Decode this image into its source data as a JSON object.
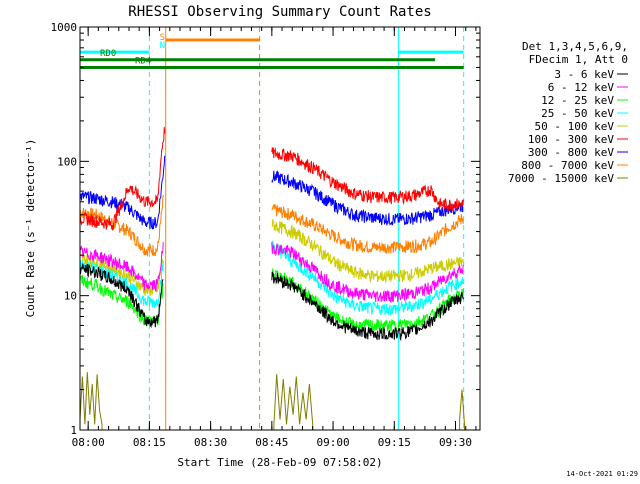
{
  "chart_data": {
    "type": "line",
    "title": "RHESSI Observing Summary Count Rates",
    "xlabel": "Start Time (28-Feb-09 07:58:02)",
    "ylabel": "Count Rate (s⁻¹ detector⁻¹)",
    "yscale": "log",
    "ylim": [
      1,
      1000
    ],
    "xlim_minutes": [
      0,
      98
    ],
    "x_ticks": [
      {
        "t": 2,
        "label": "08:00"
      },
      {
        "t": 17,
        "label": "08:15"
      },
      {
        "t": 32,
        "label": "08:30"
      },
      {
        "t": 47,
        "label": "08:45"
      },
      {
        "t": 62,
        "label": "09:00"
      },
      {
        "t": 77,
        "label": "09:15"
      },
      {
        "t": 92,
        "label": "09:30"
      }
    ],
    "y_ticks": [
      {
        "v": 1,
        "label": "1"
      },
      {
        "v": 10,
        "label": "10"
      },
      {
        "v": 100,
        "label": "100"
      },
      {
        "v": 1000,
        "label": "1000"
      }
    ],
    "legend": {
      "placement": "right",
      "header": [
        "Det 1,3,4,5,6,9,",
        "FDecim 1, Att 0"
      ],
      "entries": [
        {
          "label": "3 - 6 keV",
          "color": "#000000"
        },
        {
          "label": "6 - 12 keV",
          "color": "#ff00ff"
        },
        {
          "label": "12 - 25 keV",
          "color": "#00ff00"
        },
        {
          "label": "25 - 50 keV",
          "color": "#00ffff"
        },
        {
          "label": "50 - 100 keV",
          "color": "#cccc00"
        },
        {
          "label": "100 - 300 keV",
          "color": "#ff0000"
        },
        {
          "label": "300 - 800 keV",
          "color": "#0000ff"
        },
        {
          "label": "800 - 7000 keV",
          "color": "#ff7f00"
        },
        {
          "label": "7000 - 15000 keV",
          "color": "#7f7f00"
        }
      ]
    },
    "series": [
      {
        "name": "3 - 6 keV",
        "color": "#000000",
        "segments": [
          {
            "x": [
              0,
              4,
              8,
              12,
              16,
              19,
              20.5
            ],
            "y": [
              16,
              15,
              13,
              11,
              6.5,
              6.5,
              15
            ]
          },
          {
            "x": [
              47,
              52,
              57,
              62,
              67,
              72,
              77,
              82,
              86,
              90,
              94
            ],
            "y": [
              14,
              12,
              9,
              6.5,
              5.5,
              5.2,
              5.2,
              5.5,
              6.5,
              8.5,
              10
            ]
          }
        ]
      },
      {
        "name": "6 - 12 keV",
        "color": "#ff00ff",
        "segments": [
          {
            "x": [
              0,
              4,
              8,
              12,
              16,
              19,
              20.5
            ],
            "y": [
              21,
              20,
              18,
              16,
              12,
              12,
              24
            ]
          },
          {
            "x": [
              47,
              52,
              57,
              62,
              67,
              72,
              77,
              82,
              86,
              90,
              94
            ],
            "y": [
              23,
              21,
              16,
              12,
              10.5,
              10,
              10,
              10.5,
              11.5,
              14,
              16
            ]
          }
        ]
      },
      {
        "name": "12 - 25 keV",
        "color": "#00ff00",
        "segments": [
          {
            "x": [
              0,
              4,
              8,
              12,
              16,
              19,
              20.5
            ],
            "y": [
              13,
              12,
              10,
              9,
              6.5,
              6.5,
              12
            ]
          },
          {
            "x": [
              47,
              52,
              57,
              62,
              67,
              72,
              77,
              82,
              86,
              90,
              94
            ],
            "y": [
              15,
              12.5,
              9.5,
              7,
              6,
              6,
              6,
              6.3,
              7,
              9,
              10.5
            ]
          }
        ]
      },
      {
        "name": "25 - 50 keV",
        "color": "#00ffff",
        "segments": [
          {
            "x": [
              0,
              4,
              8,
              12,
              16,
              19,
              20.5
            ],
            "y": [
              17,
              16,
              14,
              12,
              9,
              9,
              18
            ]
          },
          {
            "x": [
              47,
              52,
              57,
              62,
              67,
              72,
              77,
              82,
              86,
              90,
              94
            ],
            "y": [
              24,
              18,
              14,
              10,
              8.5,
              8,
              8,
              8.5,
              9.5,
              11.5,
              13
            ]
          }
        ]
      },
      {
        "name": "50 - 100 keV",
        "color": "#cccc00",
        "segments": [
          {
            "x": [
              0,
              4,
              8,
              12,
              16,
              19,
              20.5
            ],
            "y": [
              19,
              18,
              16,
              14,
              11,
              11,
              20
            ]
          },
          {
            "x": [
              47,
              52,
              57,
              62,
              67,
              72,
              77,
              82,
              86,
              90,
              94
            ],
            "y": [
              34,
              30,
              24,
              18,
              15,
              14,
              14,
              14.5,
              16,
              17,
              18
            ]
          }
        ]
      },
      {
        "name": "100 - 300 keV",
        "color": "#ff0000",
        "segments": [
          {
            "x": [
              0,
              4,
              8,
              12,
              16,
              19,
              20,
              20.8
            ],
            "y": [
              38,
              36,
              34,
              65,
              50,
              50,
              120,
              180
            ]
          },
          {
            "x": [
              47,
              52,
              57,
              62,
              67,
              72,
              77,
              82,
              86,
              88,
              94
            ],
            "y": [
              115,
              110,
              90,
              70,
              58,
              54,
              54,
              56,
              62,
              48,
              48
            ]
          }
        ]
      },
      {
        "name": "300 - 800 keV",
        "color": "#0000ff",
        "segments": [
          {
            "x": [
              0,
              4,
              8,
              12,
              16,
              19,
              20,
              20.8
            ],
            "y": [
              55,
              53,
              50,
              45,
              35,
              35,
              65,
              110
            ]
          },
          {
            "x": [
              47,
              52,
              57,
              62,
              67,
              72,
              77,
              82,
              86,
              90,
              94
            ],
            "y": [
              78,
              70,
              60,
              48,
              40,
              38,
              37,
              38,
              40,
              44,
              47
            ]
          }
        ]
      },
      {
        "name": "800 - 7000 keV",
        "color": "#ff7f00",
        "segments": [
          {
            "x": [
              0,
              4,
              8,
              12,
              16,
              19,
              20.5
            ],
            "y": [
              42,
              40,
              35,
              30,
              22,
              22,
              55
            ]
          },
          {
            "x": [
              47,
              52,
              57,
              62,
              67,
              72,
              77,
              82,
              86,
              90,
              94
            ],
            "y": [
              44,
              40,
              34,
              28,
              24,
              23,
              23,
              23.5,
              25,
              32,
              38
            ]
          }
        ]
      },
      {
        "name": "7000 - 15000 keV",
        "color": "#7f7f00",
        "segments": [
          {
            "x": [
              0,
              0.6,
              1.2,
              1.8,
              2.4,
              3,
              3.6,
              4.2,
              4.8,
              5.4
            ],
            "y": [
              1.2,
              2.5,
              1.1,
              2.7,
              1.3,
              2.2,
              1.1,
              2.6,
              1.4,
              1.1
            ]
          },
          {
            "x": [
              47.5,
              48.2,
              49,
              49.8,
              50.6,
              51.4,
              52.2,
              53,
              53.8,
              54.6,
              55.4,
              56.2,
              57
            ],
            "y": [
              1.1,
              2.6,
              1.2,
              2.4,
              1.1,
              2.1,
              1.3,
              2.5,
              1.1,
              1.9,
              1.2,
              2.2,
              1.1
            ]
          },
          {
            "x": [
              93,
              93.6,
              94.2
            ],
            "y": [
              1.2,
              2.0,
              1.1
            ]
          }
        ]
      }
    ],
    "vlines": [
      {
        "t": 0,
        "color": "#00ffff",
        "style": "solid"
      },
      {
        "t": 17,
        "color": "#00ffff",
        "style": "dashed"
      },
      {
        "t": 21,
        "color": "#ff7f00",
        "style": "solid"
      },
      {
        "t": 44,
        "color": "#ff7f00",
        "style": "dashed"
      },
      {
        "t": 78,
        "color": "#00ffff",
        "style": "solid"
      },
      {
        "t": 94,
        "color": "#00ffff",
        "style": "dashed"
      }
    ],
    "state_bars": [
      {
        "label": "",
        "color": "#00ffff",
        "y": 650,
        "ranges": [
          [
            0,
            17
          ],
          [
            78,
            94
          ]
        ]
      },
      {
        "label": "",
        "color": "#ff7f00",
        "y": 800,
        "ranges": [
          [
            21,
            44
          ]
        ]
      },
      {
        "label": "RD0",
        "color": "#008000",
        "y": 570,
        "ranges": [
          [
            0,
            87
          ]
        ]
      },
      {
        "label": "RD4",
        "color": "#008000",
        "y": 500,
        "ranges": [
          [
            0,
            94
          ]
        ]
      }
    ],
    "markers": [
      {
        "label": "S",
        "color": "#ff7f00"
      },
      {
        "label": "N",
        "color": "#00ffff"
      }
    ]
  },
  "footer": {
    "timestamp": "14-Oct-2021 01:29"
  }
}
